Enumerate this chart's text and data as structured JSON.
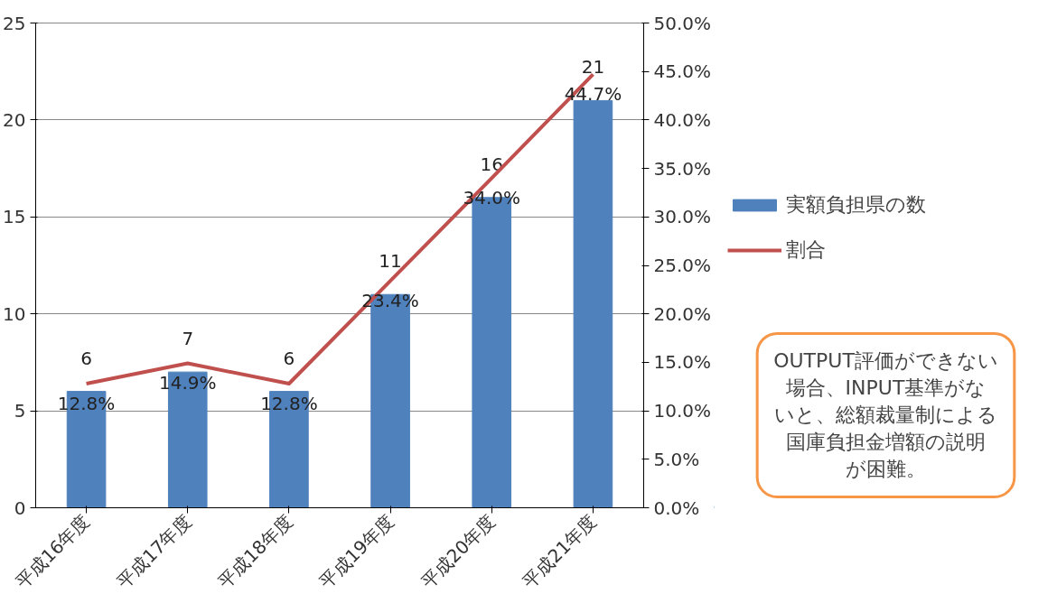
{
  "chart_data": {
    "type": "bar",
    "categories": [
      "平成16年度",
      "平成17年度",
      "平成18年度",
      "平成19年度",
      "平成20年度",
      "平成21年度"
    ],
    "series": [
      {
        "name": "実額負担県の数",
        "color": "#4f81bd",
        "values": [
          6,
          7,
          6,
          11,
          16,
          21
        ],
        "value_labels": [
          "6",
          "7",
          "6",
          "11",
          "16",
          "21"
        ]
      },
      {
        "name": "割合",
        "type": "line",
        "axis": "y2",
        "color": "#c0504d",
        "values": [
          12.8,
          14.9,
          12.8,
          23.4,
          34.0,
          44.7
        ],
        "value_labels": [
          "12.8%",
          "14.9%",
          "12.8%",
          "23.4%",
          "34.0%",
          "44.7%"
        ]
      }
    ],
    "ylim": [
      0,
      25
    ],
    "yticks": [
      0,
      5,
      10,
      15,
      20,
      25
    ],
    "y2lim": [
      0,
      50
    ],
    "y2ticks": [
      {
        "value": 0,
        "label": "0.0%"
      },
      {
        "value": 5,
        "label": "5.0%"
      },
      {
        "value": 10,
        "label": "10.0%"
      },
      {
        "value": 15,
        "label": "15.0%"
      },
      {
        "value": 20,
        "label": "20.0%"
      },
      {
        "value": 25,
        "label": "25.0%"
      },
      {
        "value": 30,
        "label": "30.0%"
      },
      {
        "value": 35,
        "label": "35.0%"
      },
      {
        "value": 40,
        "label": "40.0%"
      },
      {
        "value": 45,
        "label": "45.0%"
      },
      {
        "value": 50,
        "label": "50.0%"
      }
    ],
    "grid": "y",
    "legend": "right",
    "marker": "none",
    "line_style": "solid",
    "annotations": [
      "OUTPUT評価ができない場合、INPUT基準がないと、総額裁量制による国庫負担金増額の説明が困難。"
    ]
  }
}
